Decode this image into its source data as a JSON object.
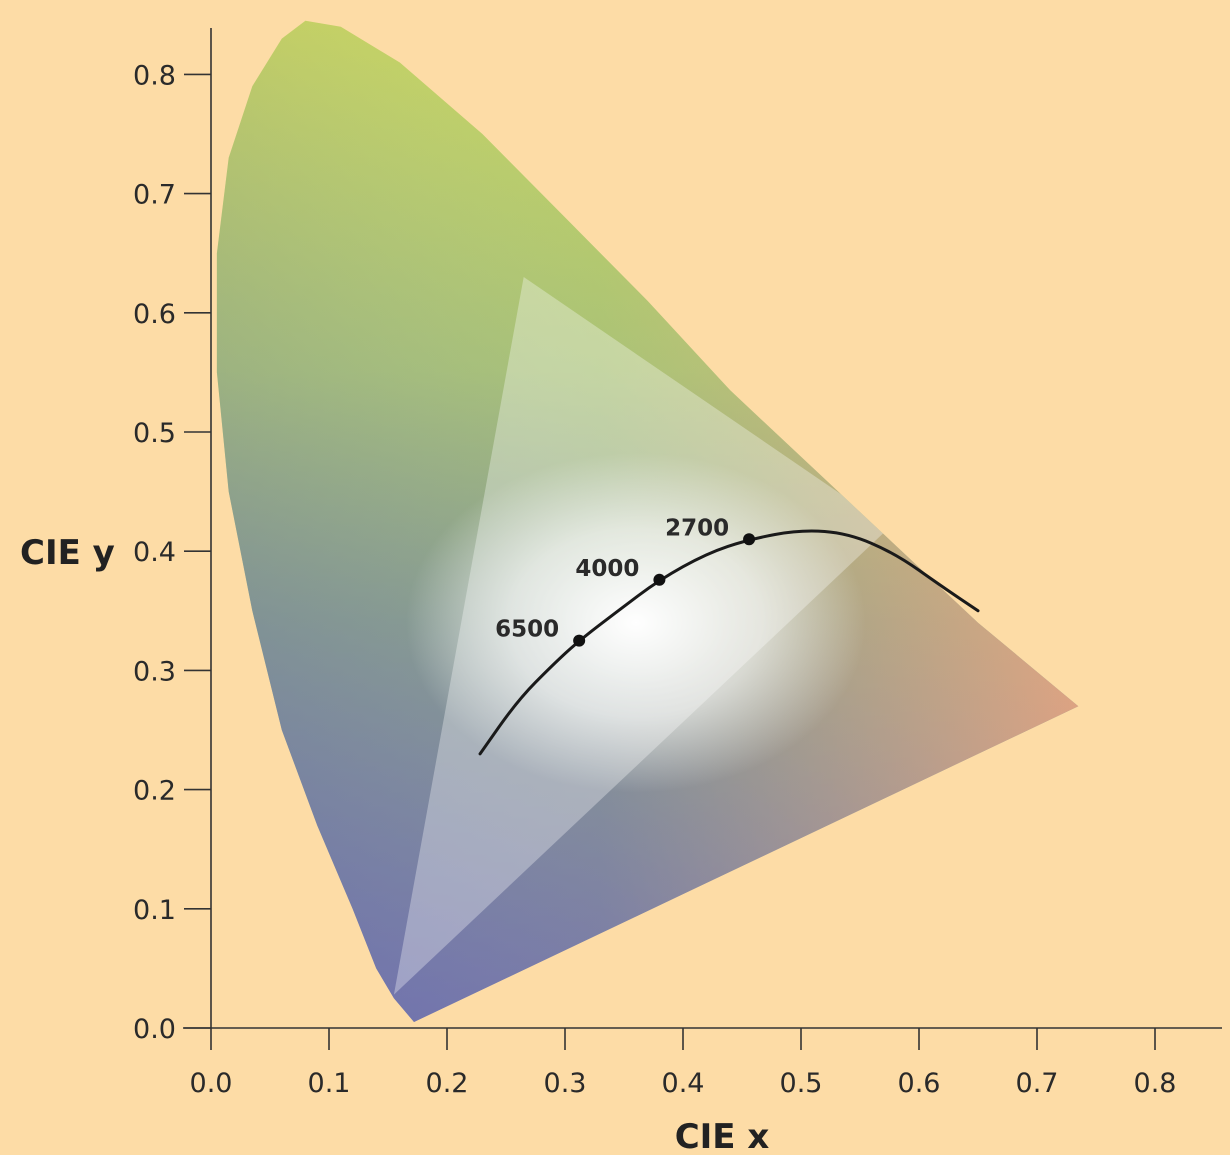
{
  "chart_data": {
    "type": "scatter",
    "xlabel": "CIE x",
    "ylabel": "CIE y",
    "xlim": [
      0.0,
      0.85
    ],
    "ylim": [
      0.0,
      0.85
    ],
    "x_ticks": [
      "0.0",
      "0.1",
      "0.2",
      "0.3",
      "0.4",
      "0.5",
      "0.6",
      "0.7",
      "0.8"
    ],
    "y_ticks": [
      "0.0",
      "0.1",
      "0.2",
      "0.3",
      "0.4",
      "0.5",
      "0.6",
      "0.7",
      "0.8"
    ],
    "spectral_locus": [
      [
        0.172,
        0.005
      ],
      [
        0.155,
        0.025
      ],
      [
        0.14,
        0.05
      ],
      [
        0.12,
        0.1
      ],
      [
        0.09,
        0.17
      ],
      [
        0.06,
        0.25
      ],
      [
        0.035,
        0.35
      ],
      [
        0.015,
        0.45
      ],
      [
        0.005,
        0.55
      ],
      [
        0.005,
        0.65
      ],
      [
        0.015,
        0.73
      ],
      [
        0.035,
        0.79
      ],
      [
        0.06,
        0.83
      ],
      [
        0.08,
        0.845
      ],
      [
        0.11,
        0.84
      ],
      [
        0.16,
        0.81
      ],
      [
        0.23,
        0.75
      ],
      [
        0.3,
        0.68
      ],
      [
        0.37,
        0.61
      ],
      [
        0.44,
        0.535
      ],
      [
        0.51,
        0.47
      ],
      [
        0.58,
        0.405
      ],
      [
        0.65,
        0.34
      ],
      [
        0.735,
        0.27
      ]
    ],
    "gamut_triangle": [
      [
        0.265,
        0.63
      ],
      [
        0.575,
        0.42
      ],
      [
        0.155,
        0.028
      ]
    ],
    "planckian_locus": [
      [
        0.228,
        0.23
      ],
      [
        0.26,
        0.275
      ],
      [
        0.29,
        0.305
      ],
      [
        0.312,
        0.325
      ],
      [
        0.345,
        0.35
      ],
      [
        0.38,
        0.376
      ],
      [
        0.42,
        0.398
      ],
      [
        0.456,
        0.41
      ],
      [
        0.5,
        0.418
      ],
      [
        0.54,
        0.415
      ],
      [
        0.58,
        0.398
      ],
      [
        0.62,
        0.37
      ],
      [
        0.65,
        0.35
      ]
    ],
    "points": [
      {
        "label": "6500",
        "x": 0.312,
        "y": 0.325
      },
      {
        "label": "4000",
        "x": 0.38,
        "y": 0.376
      },
      {
        "label": "2700",
        "x": 0.456,
        "y": 0.41
      }
    ]
  }
}
